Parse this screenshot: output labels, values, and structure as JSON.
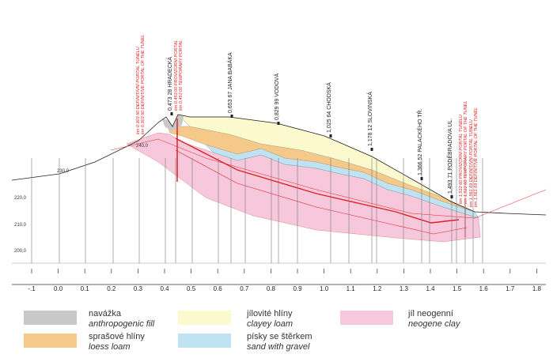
{
  "portals": [
    {
      "lines": [
        "km 0,303 50 DEFINITIVNÍ PORTÁL TUNELU",
        "km 0,303 50 DEFINITIVE PORTAL OF THE TUNEL"
      ]
    },
    {
      "lines": [
        "km 0,453 00 PROVIZORNÍ PORTÁL",
        "km 0,453 00 TEMPORARY PORTAL"
      ]
    },
    {
      "lines": [
        "km 1,512 60 PROVIZORNÍ PORTÁL TUNELU",
        "km 1,512 60 TEMPORARY PORTAL OF THE TUNEL"
      ]
    },
    {
      "lines": [
        "km 1,561 69 DEFINITIVNÍ PORTÁL TUNELU",
        "km 1,561 69 DEFINITIVE PORTAL OF THE TUNEL"
      ]
    }
  ],
  "stations": [
    "0,473 28 HRADECKÁ",
    "0,653 67 JANA BABÁKA",
    "0,829 99 VODOVÁ",
    "1,025 64 CHODSKÁ",
    "1,178 12 SLOVINSKÁ",
    "1,366 52 PALACKÉHO TŘ.",
    "1,493 71 PODĚBRADOVA UL."
  ],
  "elevations": [
    "240,0",
    "230,0",
    "220,0",
    "210,0",
    "200,0"
  ],
  "km_labels": [
    "-.1",
    "0.0",
    "0.1",
    "0.2",
    "0.3",
    "0.4",
    "0.5",
    "0.6",
    "0.7",
    "0.8",
    "0.9",
    "1.0",
    "1.1",
    "1.2",
    "1.3",
    "1.4",
    "1.5",
    "1.6",
    "1.7",
    "1.8"
  ],
  "legend": [
    {
      "name": "navážka",
      "name_en": "anthropogenic fill"
    },
    {
      "name": "sprašové hlíny",
      "name_en": "loess loam"
    },
    {
      "name": "jílovité hlíny",
      "name_en": "clayey loam"
    },
    {
      "name": "písky se štěrkem",
      "name_en": "sand with gravel"
    },
    {
      "name": "jíl neogenní",
      "name_en": "neogene clay"
    }
  ]
}
